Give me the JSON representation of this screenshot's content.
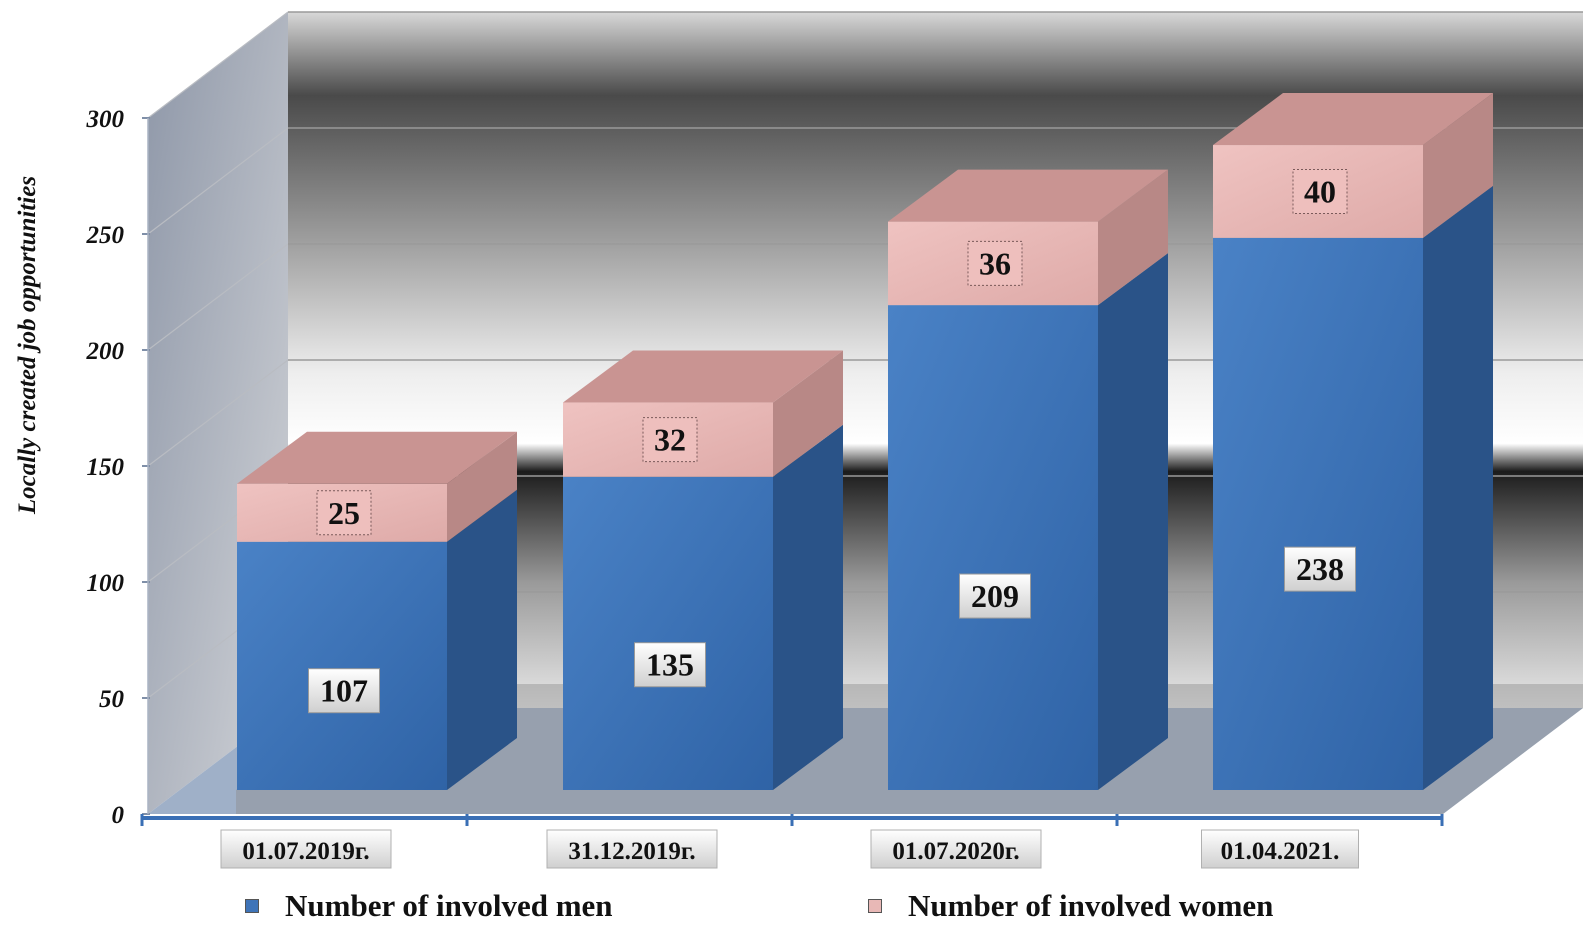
{
  "chart_data": {
    "type": "bar",
    "stacked": true,
    "three_d": true,
    "title": "",
    "xlabel": "",
    "ylabel": "Locally created job opportunities",
    "ylim": [
      0,
      300
    ],
    "yticks": [
      "0",
      "50",
      "100",
      "150",
      "200",
      "250",
      "300"
    ],
    "categories": [
      "01.07.2019г.",
      "31.12.2019г.",
      "01.07.2020г.",
      "01.04.2021."
    ],
    "series": [
      {
        "name": "Number of involved men",
        "values": [
          107,
          135,
          209,
          238
        ],
        "color": "#3f74b8"
      },
      {
        "name": "Number of involved women",
        "values": [
          25,
          32,
          36,
          40
        ],
        "color": "#e8b8b6"
      }
    ],
    "grid": true,
    "legend_position": "bottom"
  }
}
